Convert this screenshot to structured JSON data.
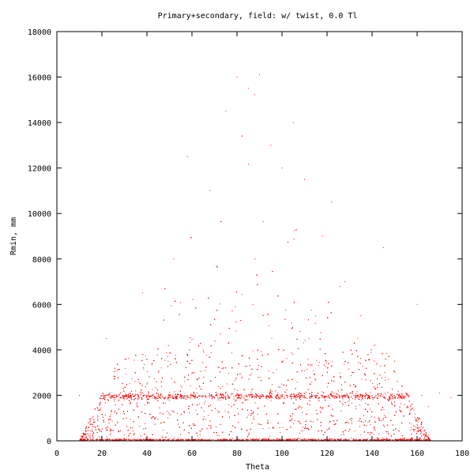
{
  "chart_data": {
    "type": "scatter",
    "title": "Primary+secondary, field: w/ twist, 0.0 Tl",
    "xlabel": "Theta",
    "ylabel": "Rmin, mm",
    "xlim": [
      0,
      180
    ],
    "ylim": [
      0,
      18000
    ],
    "x_ticks": [
      0,
      20,
      40,
      60,
      80,
      100,
      120,
      140,
      160,
      180
    ],
    "y_ticks": [
      0,
      2000,
      4000,
      6000,
      8000,
      10000,
      12000,
      14000,
      16000,
      18000
    ],
    "grid": false,
    "legend": "none",
    "point_color": "#ff0000",
    "series": [
      {
        "points_sample": [
          [
            10,
            2000
          ],
          [
            15,
            100
          ],
          [
            20,
            2100
          ],
          [
            22,
            4500
          ],
          [
            25,
            1900
          ],
          [
            30,
            120
          ],
          [
            35,
            2200
          ],
          [
            38,
            6500
          ],
          [
            40,
            1800
          ],
          [
            45,
            3000
          ],
          [
            50,
            80
          ],
          [
            52,
            8000
          ],
          [
            55,
            2000
          ],
          [
            58,
            12500
          ],
          [
            60,
            150
          ],
          [
            62,
            2300
          ],
          [
            65,
            4000
          ],
          [
            68,
            11000
          ],
          [
            70,
            1900
          ],
          [
            75,
            14500
          ],
          [
            78,
            100
          ],
          [
            80,
            16000
          ],
          [
            82,
            2000
          ],
          [
            85,
            15500
          ],
          [
            88,
            8000
          ],
          [
            90,
            16100
          ],
          [
            92,
            120
          ],
          [
            95,
            13000
          ],
          [
            98,
            2100
          ],
          [
            100,
            12000
          ],
          [
            102,
            60
          ],
          [
            105,
            14000
          ],
          [
            108,
            1900
          ],
          [
            110,
            11500
          ],
          [
            112,
            4500
          ],
          [
            115,
            2000
          ],
          [
            118,
            9000
          ],
          [
            120,
            100
          ],
          [
            122,
            10500
          ],
          [
            125,
            2200
          ],
          [
            128,
            7000
          ],
          [
            130,
            1800
          ],
          [
            135,
            5500
          ],
          [
            138,
            90
          ],
          [
            140,
            2000
          ],
          [
            145,
            8500
          ],
          [
            148,
            1900
          ],
          [
            150,
            3500
          ],
          [
            155,
            2100
          ],
          [
            158,
            100
          ],
          [
            160,
            6000
          ],
          [
            162,
            2000
          ],
          [
            165,
            1500
          ],
          [
            170,
            2100
          ],
          [
            175,
            1900
          ]
        ]
      }
    ]
  }
}
